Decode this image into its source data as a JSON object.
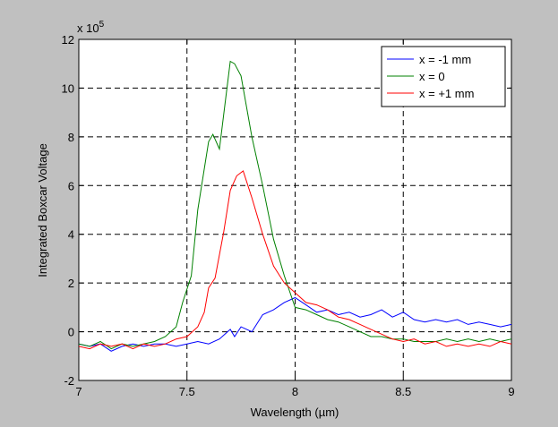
{
  "chart_data": {
    "type": "line",
    "xlabel": "Wavelength (µm)",
    "ylabel": "Integrated Boxcar Voltage",
    "exponent_label": "x 10",
    "exponent_power": "5",
    "xlim": [
      7,
      9
    ],
    "ylim": [
      -2,
      12
    ],
    "xticks": [
      "7",
      "7.5",
      "8",
      "8.5",
      "9"
    ],
    "yticks": [
      "-2",
      "0",
      "2",
      "4",
      "6",
      "8",
      "10",
      "12"
    ],
    "grid": true,
    "legend_position": "top-right",
    "series": [
      {
        "name": "x = -1 mm",
        "color": "#0000ff",
        "x": [
          7.0,
          7.05,
          7.1,
          7.15,
          7.2,
          7.25,
          7.3,
          7.35,
          7.4,
          7.45,
          7.5,
          7.55,
          7.6,
          7.65,
          7.7,
          7.72,
          7.75,
          7.8,
          7.85,
          7.9,
          7.95,
          8.0,
          8.05,
          8.1,
          8.15,
          8.2,
          8.25,
          8.3,
          8.35,
          8.4,
          8.45,
          8.5,
          8.55,
          8.6,
          8.65,
          8.7,
          8.75,
          8.8,
          8.85,
          8.9,
          8.95,
          9.0
        ],
        "y": [
          -0.5,
          -0.6,
          -0.5,
          -0.8,
          -0.6,
          -0.5,
          -0.6,
          -0.5,
          -0.5,
          -0.6,
          -0.5,
          -0.4,
          -0.5,
          -0.3,
          0.1,
          -0.2,
          0.2,
          0.0,
          0.7,
          0.9,
          1.2,
          1.4,
          1.1,
          0.8,
          0.9,
          0.7,
          0.8,
          0.6,
          0.7,
          0.9,
          0.6,
          0.8,
          0.5,
          0.4,
          0.5,
          0.4,
          0.5,
          0.3,
          0.4,
          0.3,
          0.2,
          0.3
        ]
      },
      {
        "name": "x = 0",
        "color": "#008000",
        "x": [
          7.0,
          7.05,
          7.1,
          7.15,
          7.2,
          7.25,
          7.3,
          7.35,
          7.4,
          7.45,
          7.48,
          7.52,
          7.55,
          7.6,
          7.62,
          7.65,
          7.7,
          7.72,
          7.75,
          7.8,
          7.85,
          7.9,
          7.95,
          8.0,
          8.05,
          8.1,
          8.15,
          8.2,
          8.25,
          8.3,
          8.35,
          8.4,
          8.45,
          8.5,
          8.55,
          8.6,
          8.65,
          8.7,
          8.75,
          8.8,
          8.85,
          8.9,
          8.95,
          9.0
        ],
        "y": [
          -0.5,
          -0.6,
          -0.4,
          -0.7,
          -0.5,
          -0.6,
          -0.5,
          -0.4,
          -0.2,
          0.2,
          1.2,
          2.3,
          5.0,
          7.8,
          8.1,
          7.5,
          11.1,
          11.0,
          10.5,
          8.0,
          6.0,
          3.8,
          2.3,
          1.0,
          0.9,
          0.7,
          0.5,
          0.4,
          0.2,
          0.0,
          -0.2,
          -0.2,
          -0.3,
          -0.3,
          -0.4,
          -0.4,
          -0.4,
          -0.3,
          -0.4,
          -0.3,
          -0.4,
          -0.3,
          -0.4,
          -0.3
        ]
      },
      {
        "name": "x = +1 mm",
        "color": "#ff0000",
        "x": [
          7.0,
          7.05,
          7.1,
          7.15,
          7.2,
          7.25,
          7.3,
          7.35,
          7.4,
          7.45,
          7.5,
          7.55,
          7.58,
          7.6,
          7.63,
          7.67,
          7.7,
          7.73,
          7.76,
          7.8,
          7.85,
          7.9,
          7.95,
          8.0,
          8.05,
          8.1,
          8.15,
          8.2,
          8.25,
          8.3,
          8.35,
          8.4,
          8.45,
          8.5,
          8.55,
          8.6,
          8.65,
          8.7,
          8.75,
          8.8,
          8.85,
          8.9,
          8.95,
          9.0
        ],
        "y": [
          -0.6,
          -0.7,
          -0.5,
          -0.6,
          -0.5,
          -0.7,
          -0.5,
          -0.6,
          -0.5,
          -0.3,
          -0.2,
          0.2,
          0.8,
          1.8,
          2.2,
          4.1,
          5.8,
          6.4,
          6.6,
          5.5,
          4.0,
          2.7,
          2.0,
          1.6,
          1.2,
          1.1,
          0.9,
          0.6,
          0.5,
          0.3,
          0.1,
          -0.1,
          -0.3,
          -0.4,
          -0.3,
          -0.5,
          -0.4,
          -0.6,
          -0.5,
          -0.6,
          -0.5,
          -0.6,
          -0.4,
          -0.5
        ]
      }
    ]
  }
}
